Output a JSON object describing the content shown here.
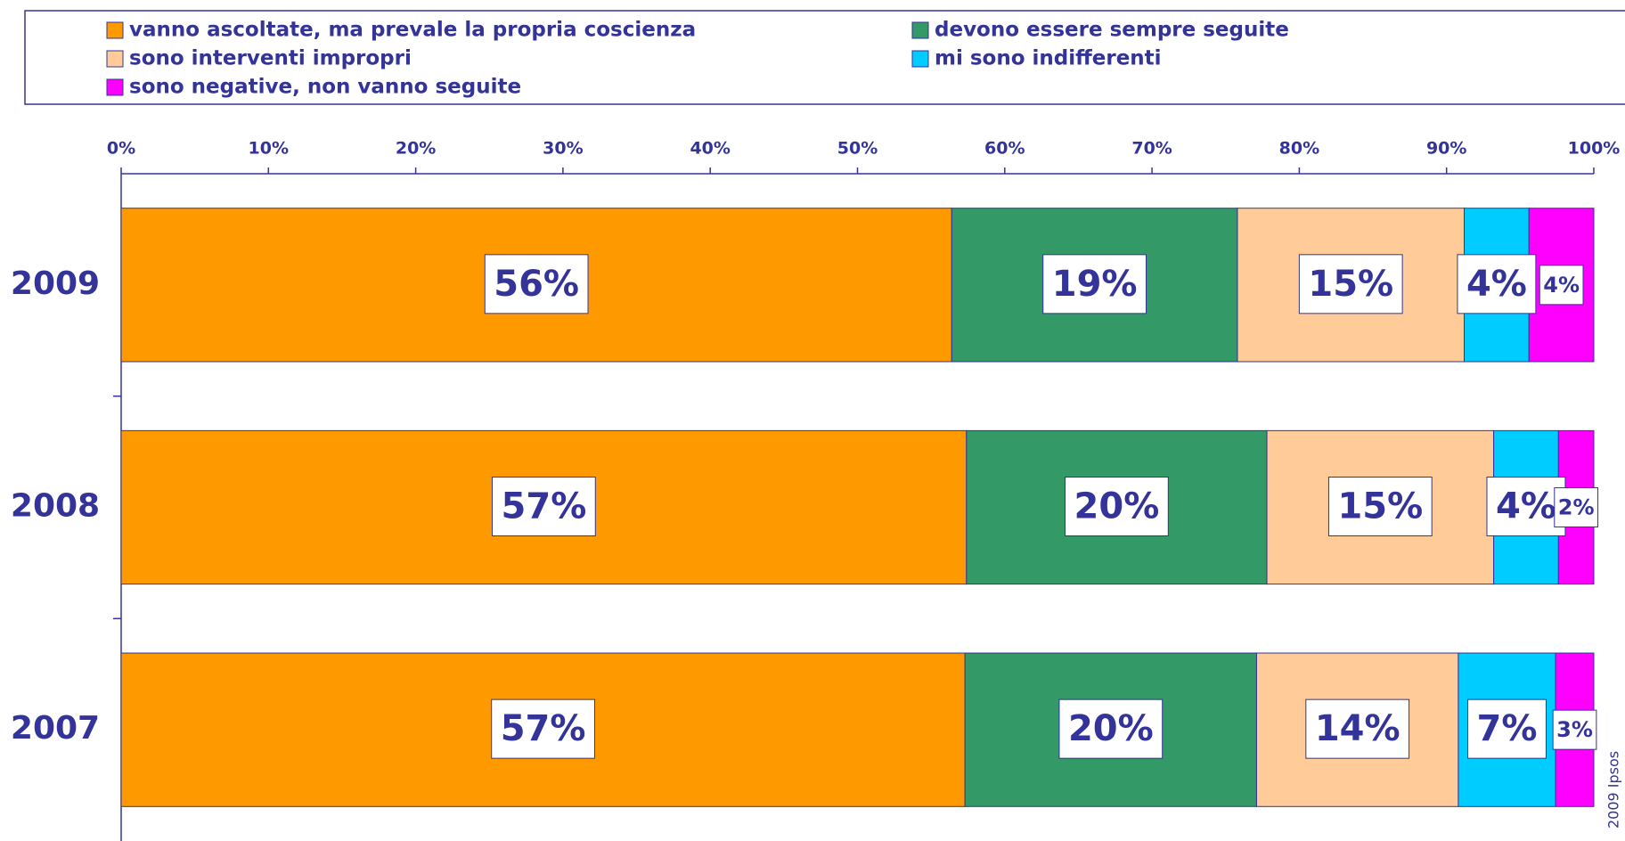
{
  "chart_data": {
    "type": "stacked-bar-horizontal",
    "categories": [
      "2009",
      "2008",
      "2007"
    ],
    "series": [
      {
        "name": "vanno ascoltate, ma prevale la propria coscienza",
        "color": "#FF9900",
        "values": [
          56.4,
          57.4,
          57.3
        ],
        "value_labels": [
          "56%",
          "57%",
          "57%"
        ]
      },
      {
        "name": "devono essere sempre seguite",
        "color": "#339966",
        "values": [
          19.4,
          20.4,
          19.8
        ],
        "value_labels": [
          "19%",
          "20%",
          "20%"
        ]
      },
      {
        "name": "sono interventi impropri",
        "color": "#FFCC99",
        "values": [
          15.4,
          15.4,
          13.7
        ],
        "value_labels": [
          "15%",
          "15%",
          "14%"
        ]
      },
      {
        "name": "mi sono indifferenti",
        "color": "#00CCFF",
        "values": [
          4.4,
          4.4,
          6.6
        ],
        "value_labels": [
          "4%",
          "4%",
          "7%"
        ]
      },
      {
        "name": "sono negative, non vanno seguite",
        "color": "#FF00FF",
        "values": [
          4.4,
          2.4,
          2.6
        ],
        "value_labels": [
          "4%",
          "2%",
          "3%"
        ]
      }
    ],
    "xlim": [
      0,
      100
    ],
    "xticks": [
      {
        "value": 0,
        "label": "0%"
      },
      {
        "value": 10,
        "label": "10%"
      },
      {
        "value": 20,
        "label": "20%"
      },
      {
        "value": 30,
        "label": "30%"
      },
      {
        "value": 40,
        "label": "40%"
      },
      {
        "value": 50,
        "label": "50%"
      },
      {
        "value": 60,
        "label": "60%"
      },
      {
        "value": 70,
        "label": "70%"
      },
      {
        "value": 80,
        "label": "80%"
      },
      {
        "value": 90,
        "label": "90%"
      },
      {
        "value": 100,
        "label": "100%"
      }
    ],
    "source": "2009 Ipsos"
  }
}
